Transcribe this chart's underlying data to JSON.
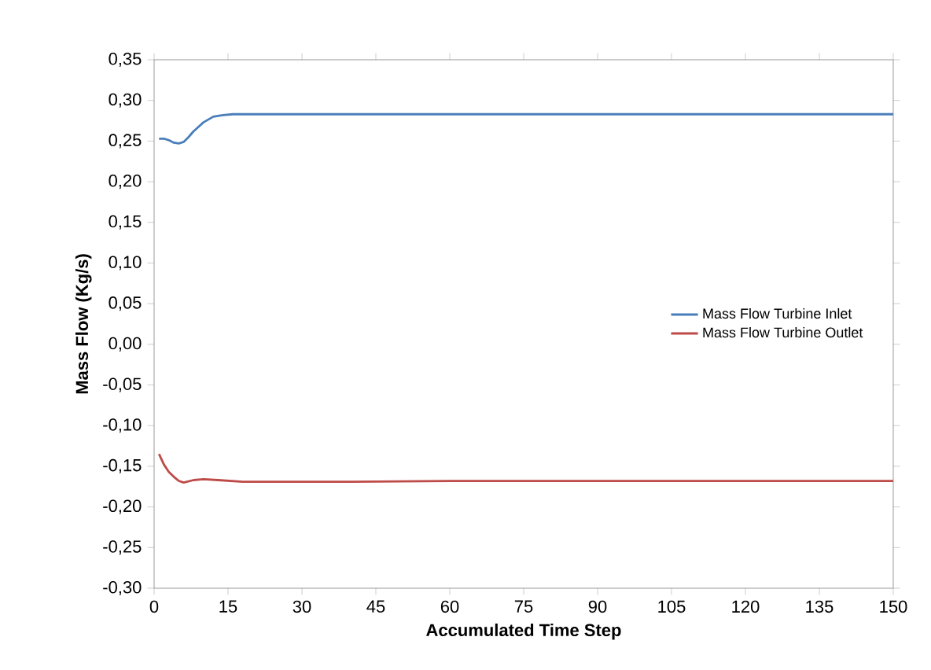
{
  "chart_data": {
    "type": "line",
    "xlabel": "Accumulated Time Step",
    "ylabel": "Mass Flow (Kg/s)",
    "xlim": [
      0,
      150
    ],
    "xticks": [
      0,
      15,
      30,
      45,
      60,
      75,
      90,
      105,
      120,
      135,
      150
    ],
    "ylim": [
      -0.3,
      0.35
    ],
    "yticks": [
      {
        "value": -0.3,
        "label": "-0,30"
      },
      {
        "value": -0.25,
        "label": "-0,25"
      },
      {
        "value": -0.2,
        "label": "-0,20"
      },
      {
        "value": -0.15,
        "label": "-0,15"
      },
      {
        "value": -0.1,
        "label": "-0,10"
      },
      {
        "value": -0.05,
        "label": "-0,05"
      },
      {
        "value": 0,
        "label": "0,00"
      },
      {
        "value": 0.05,
        "label": "0,05"
      },
      {
        "value": 0.1,
        "label": "0,10"
      },
      {
        "value": 0.15,
        "label": "0,15"
      },
      {
        "value": 0.2,
        "label": "0,20"
      },
      {
        "value": 0.25,
        "label": "0,25"
      },
      {
        "value": 0.3,
        "label": "0,30"
      },
      {
        "value": 0.35,
        "label": "0,35"
      }
    ],
    "legend": "right",
    "grid": false,
    "marker": "none",
    "line_style": "solid",
    "series": [
      {
        "name": "Mass Flow Turbine Inlet",
        "color": "#4a7ebb",
        "x": [
          1,
          2,
          3,
          4,
          5,
          6,
          7,
          8,
          10,
          12,
          14,
          16,
          20,
          30,
          60,
          90,
          120,
          150
        ],
        "values": [
          0.253,
          0.253,
          0.251,
          0.248,
          0.247,
          0.249,
          0.255,
          0.262,
          0.273,
          0.28,
          0.282,
          0.283,
          0.283,
          0.283,
          0.283,
          0.283,
          0.283,
          0.283
        ]
      },
      {
        "name": "Mass Flow Turbine Outlet",
        "color": "#be4b48",
        "x": [
          1,
          2,
          3,
          4,
          5,
          6,
          8,
          10,
          13,
          18,
          25,
          40,
          60,
          90,
          120,
          150
        ],
        "values": [
          -0.135,
          -0.148,
          -0.157,
          -0.163,
          -0.168,
          -0.17,
          -0.167,
          -0.166,
          -0.167,
          -0.169,
          -0.169,
          -0.169,
          -0.168,
          -0.168,
          -0.168,
          -0.168
        ]
      }
    ]
  }
}
